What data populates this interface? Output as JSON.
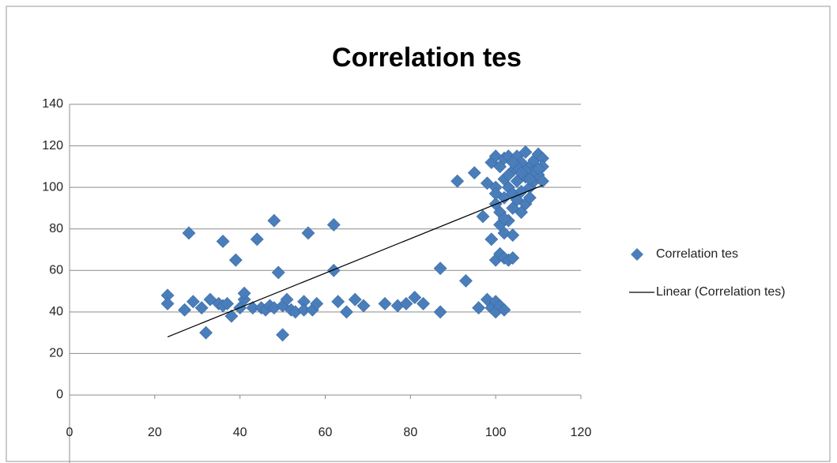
{
  "chart_data": {
    "type": "scatter",
    "title": "Correlation tes",
    "series": [
      {
        "name": "Correlation tes",
        "color": "#4a7ebb",
        "x": [
          23,
          23,
          27,
          28,
          29,
          31,
          32,
          33,
          35,
          36,
          36,
          37,
          38,
          39,
          40,
          41,
          41,
          43,
          44,
          45,
          46,
          47,
          48,
          48,
          49,
          50,
          50,
          51,
          52,
          53,
          55,
          55,
          56,
          57,
          58,
          62,
          62,
          63,
          65,
          67,
          69,
          74,
          77,
          79,
          81,
          83,
          87,
          87,
          91,
          93,
          95,
          96,
          97,
          98,
          98,
          99,
          99,
          100,
          100,
          101,
          102,
          99,
          100,
          101,
          102,
          103,
          104,
          105,
          106,
          107,
          108,
          109,
          110,
          111,
          111,
          100,
          101,
          102,
          103,
          104,
          105,
          106,
          107,
          108,
          109,
          110,
          111,
          100,
          101,
          102,
          103,
          104,
          102,
          100,
          101,
          102,
          103,
          104,
          104,
          105,
          106,
          107,
          108,
          109,
          110,
          100,
          102,
          103,
          105,
          107,
          108,
          106,
          104
        ],
        "values": [
          48,
          44,
          41,
          78,
          45,
          42,
          30,
          46,
          44,
          74,
          43,
          44,
          38,
          65,
          42,
          46,
          49,
          42,
          75,
          42,
          41,
          43,
          84,
          42,
          59,
          43,
          29,
          46,
          41,
          40,
          45,
          41,
          78,
          41,
          44,
          82,
          60,
          45,
          40,
          46,
          43,
          44,
          43,
          44,
          47,
          44,
          61,
          40,
          103,
          55,
          107,
          42,
          86,
          102,
          46,
          42,
          75,
          45,
          40,
          43,
          41,
          112,
          115,
          110,
          114,
          115,
          108,
          115,
          112,
          117,
          110,
          113,
          116,
          114,
          110,
          92,
          88,
          95,
          100,
          97,
          103,
          98,
          105,
          100,
          103,
          106,
          103,
          100,
          82,
          78,
          84,
          77,
          85,
          65,
          68,
          66,
          65,
          66,
          90,
          94,
          88,
          92,
          95,
          108,
          109,
          97,
          104,
          106,
          110,
          108,
          104,
          107,
          112
        ]
      }
    ],
    "trendline": {
      "name": "Linear (Correlation tes)",
      "color": "#000000",
      "x": [
        23,
        111
      ],
      "values": [
        28,
        101
      ]
    },
    "xlim": [
      0,
      120
    ],
    "xticks": [
      0,
      20,
      40,
      60,
      80,
      100,
      120
    ],
    "ylim": [
      0,
      140
    ],
    "yticks": [
      0,
      20,
      40,
      60,
      80,
      100,
      120,
      140
    ],
    "grid": true,
    "legend": "right"
  }
}
